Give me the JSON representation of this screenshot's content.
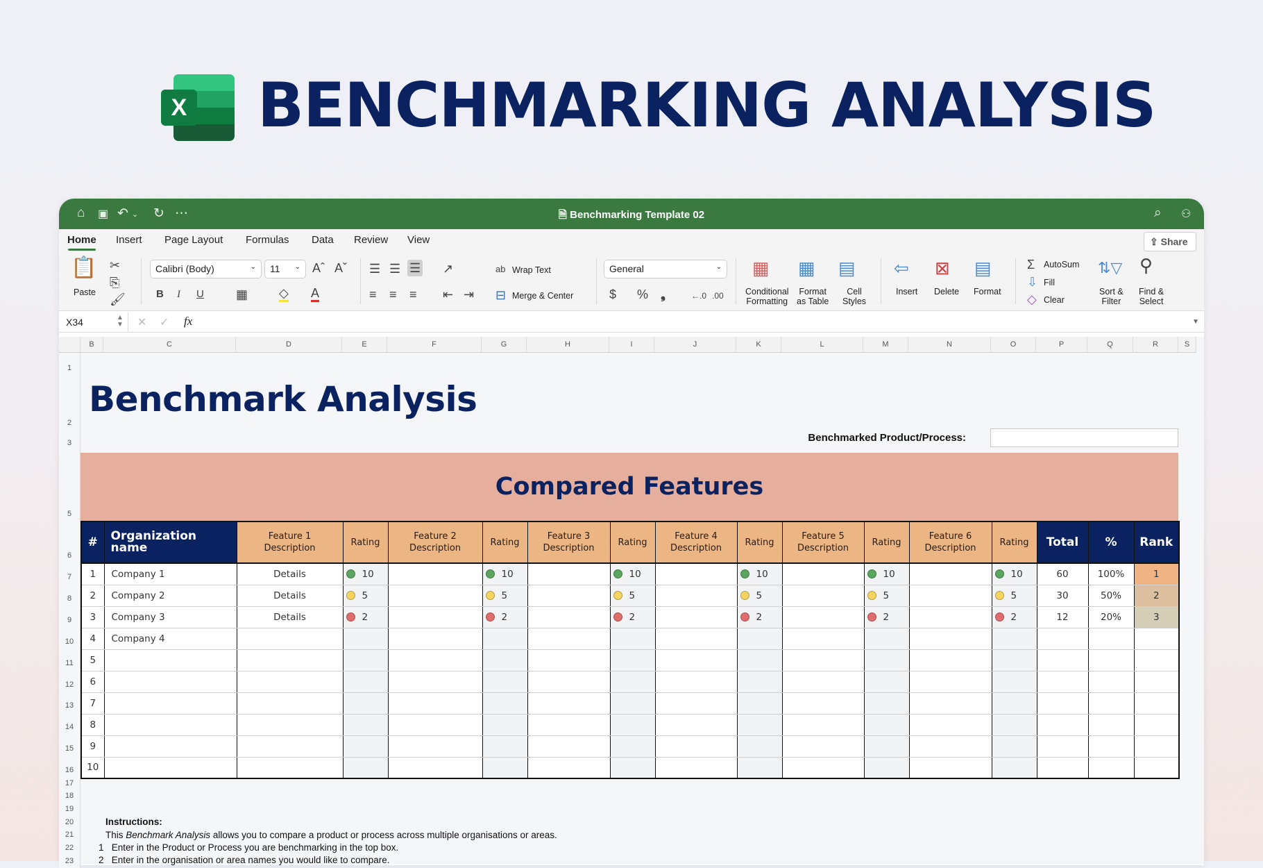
{
  "hero": {
    "title": "BENCHMARKING ANALYSIS",
    "logo_letter": "X"
  },
  "window": {
    "doc_title": "Benchmarking Template 02"
  },
  "tabs": [
    "Home",
    "Insert",
    "Page Layout",
    "Formulas",
    "Data",
    "Review",
    "View"
  ],
  "share_label": "Share",
  "ribbon": {
    "paste": "Paste",
    "font": "Calibri (Body)",
    "size": "11",
    "bold": "B",
    "italic": "I",
    "underline": "U",
    "wrap": "Wrap Text",
    "merge": "Merge & Center",
    "number_format": "General",
    "currency": "$",
    "percent": "%",
    "comma": "❟",
    "cond1": "Conditional",
    "cond2": "Formatting",
    "fat1": "Format",
    "fat2": "as Table",
    "cs1": "Cell",
    "cs2": "Styles",
    "insert": "Insert",
    "delete": "Delete",
    "format": "Format",
    "autosum": "AutoSum",
    "fill": "Fill",
    "clear": "Clear",
    "sort1": "Sort &",
    "sort2": "Filter",
    "find1": "Find &",
    "find2": "Select"
  },
  "formula_bar": {
    "name_box": "X34",
    "fx": "fx",
    "value": ""
  },
  "columns": [
    "B",
    "C",
    "D",
    "E",
    "F",
    "G",
    "H",
    "I",
    "J",
    "K",
    "L",
    "M",
    "N",
    "O",
    "P",
    "Q",
    "R",
    "S"
  ],
  "rows": [
    "1",
    "2",
    "3",
    "5",
    "6",
    "7",
    "8",
    "9",
    "10",
    "11",
    "12",
    "13",
    "14",
    "15",
    "16",
    "17",
    "18",
    "19",
    "20",
    "21",
    "22",
    "23"
  ],
  "sheet": {
    "title": "Benchmark Analysis",
    "benchmarked_label": "Benchmarked Product/Process:",
    "benchmarked_value": "",
    "band": "Compared Features",
    "headers": [
      "#",
      "Organization name",
      "Feature 1\nDescription",
      "Rating",
      "Feature 2\nDescription",
      "Rating",
      "Feature 3\nDescription",
      "Rating",
      "Feature 4\nDescription",
      "Rating",
      "Feature 5\nDescription",
      "Rating",
      "Feature 6\nDescription",
      "Rating",
      "Total",
      "%",
      "Rank"
    ],
    "rating_colors": {
      "10": "#5aa65e",
      "5": "#f4d35e",
      "2": "#e06c6c"
    },
    "rank_colors": [
      "#efb384",
      "#dcbf9f",
      "#d5ceb6"
    ],
    "rows": [
      {
        "num": "1",
        "org": "Company 1",
        "f1": "Details",
        "ratings": [
          "10",
          "10",
          "10",
          "10",
          "10",
          "10"
        ],
        "total": "60",
        "pct": "100%",
        "rank": "1"
      },
      {
        "num": "2",
        "org": "Company 2",
        "f1": "Details",
        "ratings": [
          "5",
          "5",
          "5",
          "5",
          "5",
          "5"
        ],
        "total": "30",
        "pct": "50%",
        "rank": "2"
      },
      {
        "num": "3",
        "org": "Company 3",
        "f1": "Details",
        "ratings": [
          "2",
          "2",
          "2",
          "2",
          "2",
          "2"
        ],
        "total": "12",
        "pct": "20%",
        "rank": "3"
      },
      {
        "num": "4",
        "org": "Company 4",
        "f1": "",
        "ratings": [
          "",
          "",
          "",
          "",
          "",
          ""
        ],
        "total": "",
        "pct": "",
        "rank": ""
      },
      {
        "num": "5",
        "org": "",
        "f1": "",
        "ratings": [
          "",
          "",
          "",
          "",
          "",
          ""
        ],
        "total": "",
        "pct": "",
        "rank": ""
      },
      {
        "num": "6",
        "org": "",
        "f1": "",
        "ratings": [
          "",
          "",
          "",
          "",
          "",
          ""
        ],
        "total": "",
        "pct": "",
        "rank": ""
      },
      {
        "num": "7",
        "org": "",
        "f1": "",
        "ratings": [
          "",
          "",
          "",
          "",
          "",
          ""
        ],
        "total": "",
        "pct": "",
        "rank": ""
      },
      {
        "num": "8",
        "org": "",
        "f1": "",
        "ratings": [
          "",
          "",
          "",
          "",
          "",
          ""
        ],
        "total": "",
        "pct": "",
        "rank": ""
      },
      {
        "num": "9",
        "org": "",
        "f1": "",
        "ratings": [
          "",
          "",
          "",
          "",
          "",
          ""
        ],
        "total": "",
        "pct": "",
        "rank": ""
      },
      {
        "num": "10",
        "org": "",
        "f1": "",
        "ratings": [
          "",
          "",
          "",
          "",
          "",
          ""
        ],
        "total": "",
        "pct": "",
        "rank": ""
      }
    ]
  },
  "instructions": {
    "heading": "Instructions:",
    "intro_pre": "This ",
    "intro_em": "Benchmark Analysis",
    "intro_post": "  allows you to compare a product or process across multiple organisations or areas.",
    "steps": [
      {
        "n": "1",
        "text": "Enter in the Product or Process you are benchmarking in the top box."
      },
      {
        "n": "2",
        "text": "Enter in the organisation or area names you would like to compare."
      }
    ]
  }
}
